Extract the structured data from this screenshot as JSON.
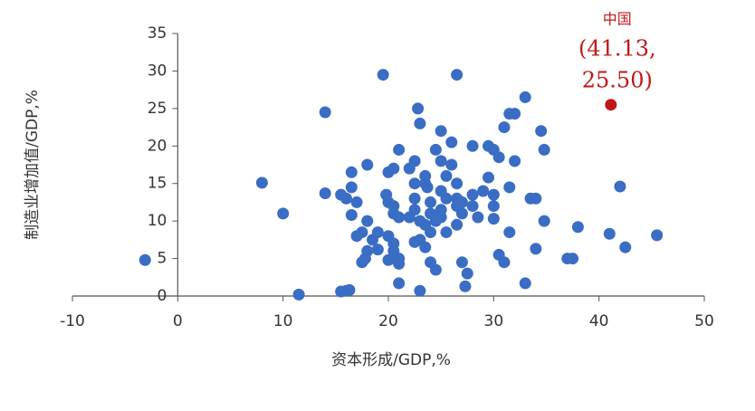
{
  "chart_data": {
    "type": "scatter",
    "x_label": "资本形成/GDP,%",
    "y_label": "制造业增加值/GDP,%",
    "color": "#3a6dc4",
    "x": [
      -3.1,
      8,
      10,
      11.5,
      14,
      14,
      15.5,
      16,
      16.5,
      16.5,
      16.5,
      17,
      15.5,
      16,
      16.3,
      17.5,
      17,
      18,
      18.5,
      18,
      17.5,
      17.8,
      19,
      19,
      18,
      19.5,
      20,
      19.8,
      20,
      20.5,
      21,
      20.5,
      20.5,
      21,
      20,
      20.5,
      20.5,
      20.5,
      20,
      21,
      21,
      21,
      22,
      22.5,
      22.5,
      22.5,
      22.5,
      22,
      23,
      23,
      22.5,
      23,
      22.8,
      23.5,
      23.5,
      23.7,
      24,
      24,
      23.5,
      24,
      23,
      23.5,
      24,
      24.5,
      24.5,
      25,
      25,
      25.5,
      25,
      25.5,
      25,
      25,
      25.5,
      24.5,
      26,
      26.5,
      26,
      26.5,
      26.5,
      26.5,
      27,
      27,
      26.5,
      27,
      27.5,
      27.3,
      28,
      28,
      28,
      28.5,
      29,
      29.5,
      29.5,
      30,
      30,
      30,
      30,
      30.5,
      30.5,
      31,
      31,
      31.5,
      32,
      32,
      31.5,
      31.5,
      33,
      33,
      33.5,
      34,
      34,
      34.5,
      34.8,
      34.8,
      37,
      37.5,
      38,
      41,
      42,
      42.5,
      45.5
    ],
    "values": [
      4.8,
      15.1,
      11,
      0.2,
      24.5,
      13.7,
      13.5,
      13,
      16.5,
      14.5,
      10.8,
      12.5,
      0.6,
      0.7,
      0.8,
      8.5,
      8,
      10,
      7.5,
      6,
      4.5,
      5,
      6.2,
      8.5,
      17.5,
      29.5,
      12.5,
      13.5,
      16.5,
      17,
      19.5,
      11,
      12,
      10.5,
      8,
      7,
      6,
      5,
      4.8,
      5,
      4.3,
      1.7,
      17,
      18,
      15,
      13,
      11.5,
      10.5,
      10,
      7.5,
      7.2,
      23,
      25,
      15,
      16,
      14.5,
      12.5,
      11,
      9.5,
      8.5,
      0.7,
      6.5,
      4.5,
      3.5,
      19.5,
      22,
      18,
      16,
      14,
      13,
      11.5,
      10.5,
      8.5,
      10,
      20.5,
      29.5,
      17.5,
      15,
      13,
      12,
      12.5,
      11,
      9.5,
      4.5,
      3,
      1.3,
      20,
      13.5,
      12,
      10.5,
      14,
      15.8,
      20,
      19.5,
      13.5,
      12,
      10.3,
      18.5,
      5.5,
      22.5,
      4.5,
      24.3,
      24.3,
      18,
      14.5,
      8.5,
      26.5,
      1.7,
      13,
      13,
      6.3,
      22,
      19.5,
      10,
      5,
      5,
      9.2,
      8.3,
      14.6,
      6.5,
      8.1
    ],
    "highlight": {
      "label": "中国",
      "x": 41.13,
      "y": 25.5,
      "annotation_lines": [
        "(41.13,",
        "25.50)"
      ],
      "color": "#c01818"
    },
    "xlim": [
      -10,
      50
    ],
    "xticks": [
      -10,
      0,
      10,
      20,
      30,
      40,
      50
    ],
    "ylim": [
      0,
      35
    ],
    "yticks": [
      0,
      5,
      10,
      15,
      20,
      25,
      30,
      35
    ]
  }
}
